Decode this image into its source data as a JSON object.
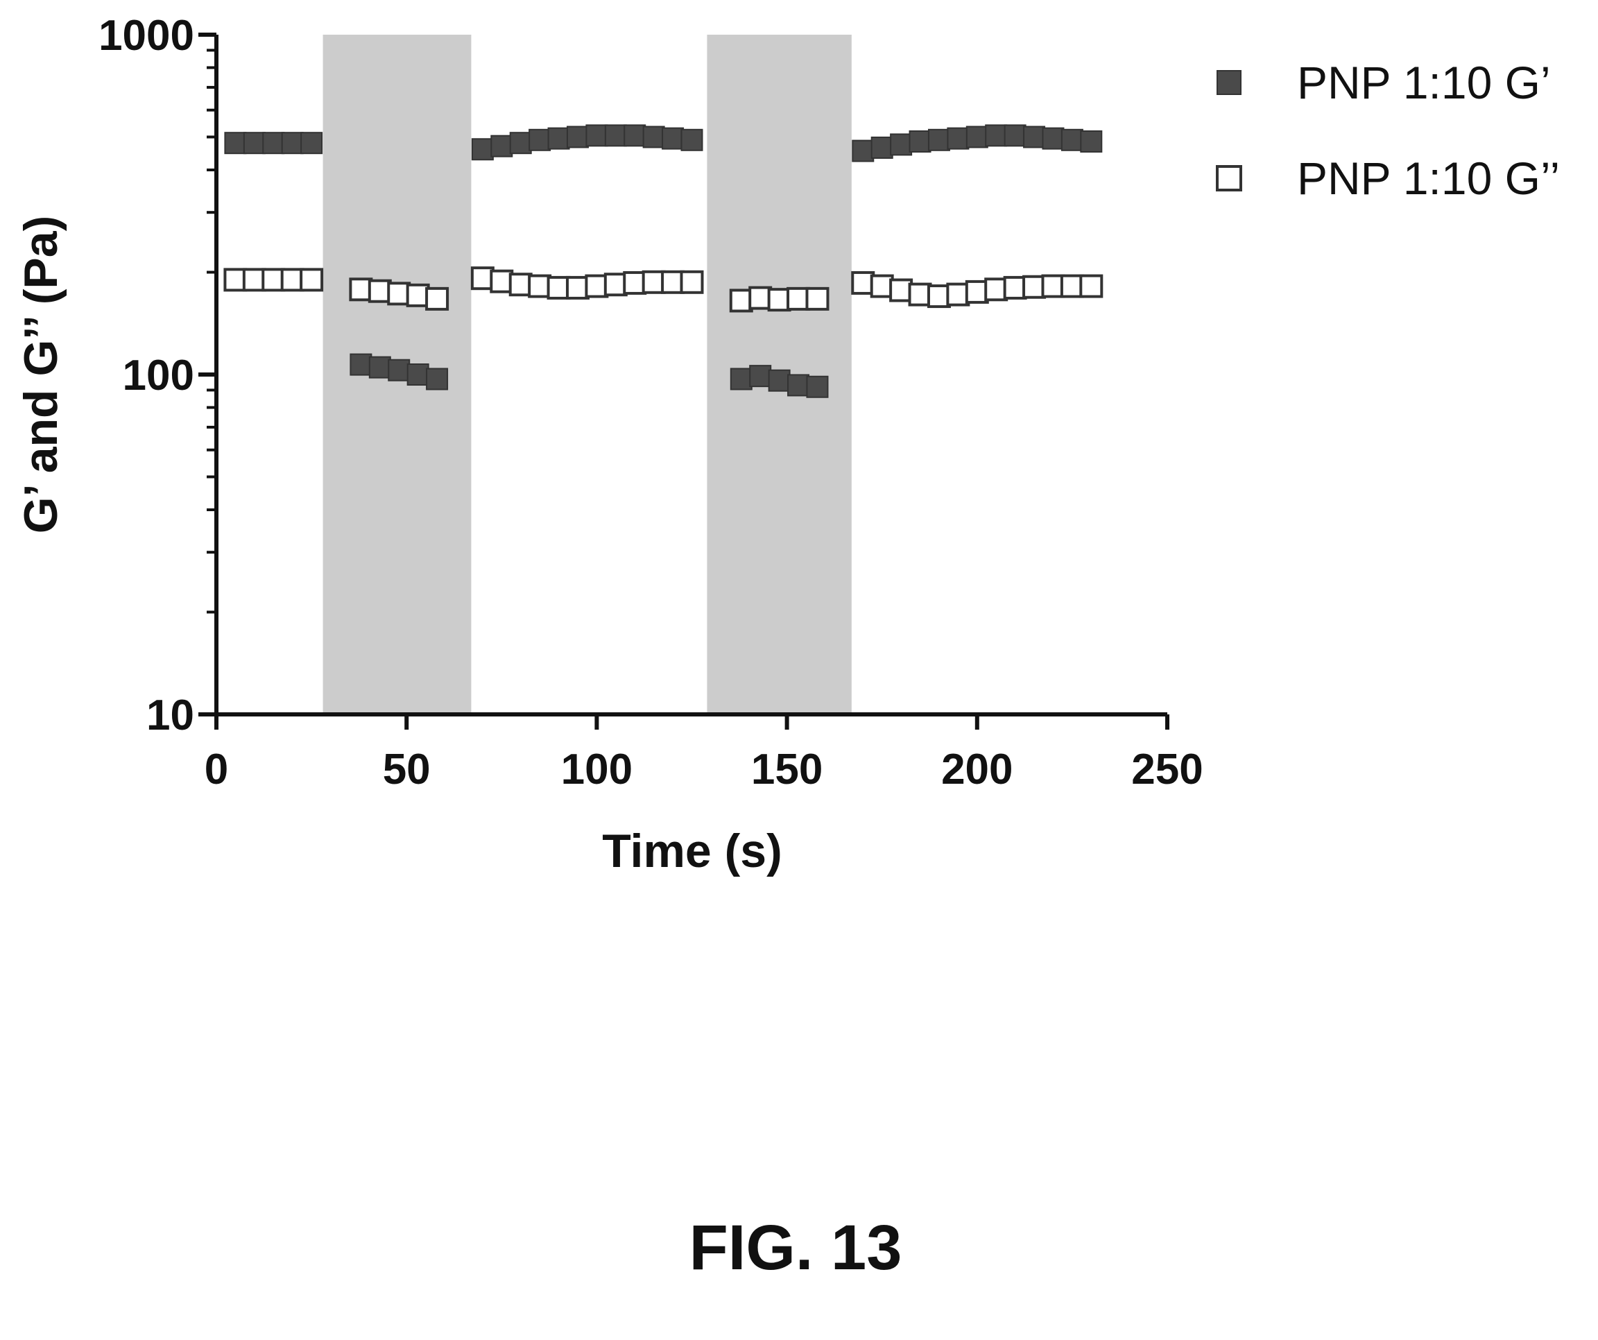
{
  "chart_data": {
    "type": "scatter",
    "xlabel": "Time (s)",
    "ylabel": "G’ and G’’ (Pa)",
    "xlim": [
      0,
      250
    ],
    "ylim": [
      10,
      1000
    ],
    "yscale": "log",
    "xticks": [
      "0",
      "50",
      "100",
      "150",
      "200",
      "250"
    ],
    "yticks": [
      "10",
      "100",
      "1000"
    ],
    "grid": false,
    "legend_position": "top-right",
    "shaded_intervals": [
      [
        28,
        67
      ],
      [
        129,
        167
      ]
    ],
    "colors": {
      "g_prime": "#4a4a4a",
      "g_double": "#ffffff",
      "shade": "#cccccc",
      "marker_edge": "#333333"
    },
    "series": [
      {
        "name": "PNP 1:10 G’",
        "marker": "filled-square",
        "x": [
          5,
          10,
          15,
          20,
          25,
          38,
          43,
          48,
          53,
          58,
          70,
          75,
          80,
          85,
          90,
          95,
          100,
          105,
          110,
          115,
          120,
          125,
          138,
          143,
          148,
          153,
          158,
          170,
          175,
          180,
          185,
          190,
          195,
          200,
          205,
          210,
          215,
          220,
          225,
          230
        ],
        "y": [
          480,
          480,
          480,
          480,
          480,
          107,
          105,
          103,
          100,
          97,
          460,
          470,
          480,
          490,
          495,
          500,
          505,
          505,
          505,
          500,
          495,
          490,
          97,
          99,
          96,
          93,
          92,
          455,
          465,
          475,
          485,
          490,
          495,
          500,
          505,
          505,
          500,
          495,
          490,
          485
        ]
      },
      {
        "name": "PNP 1:10 G’’",
        "marker": "open-square",
        "x": [
          5,
          10,
          15,
          20,
          25,
          38,
          43,
          48,
          53,
          58,
          70,
          75,
          80,
          85,
          90,
          95,
          100,
          105,
          110,
          115,
          120,
          125,
          138,
          143,
          148,
          153,
          158,
          170,
          175,
          180,
          185,
          190,
          195,
          200,
          205,
          210,
          215,
          220,
          225,
          230
        ],
        "y": [
          190,
          190,
          190,
          190,
          190,
          178,
          176,
          173,
          171,
          167,
          192,
          188,
          184,
          182,
          180,
          180,
          182,
          184,
          186,
          187,
          187,
          187,
          165,
          168,
          166,
          167,
          167,
          186,
          182,
          177,
          172,
          170,
          172,
          175,
          178,
          180,
          181,
          182,
          182,
          182
        ]
      }
    ]
  },
  "caption": "FIG. 13"
}
